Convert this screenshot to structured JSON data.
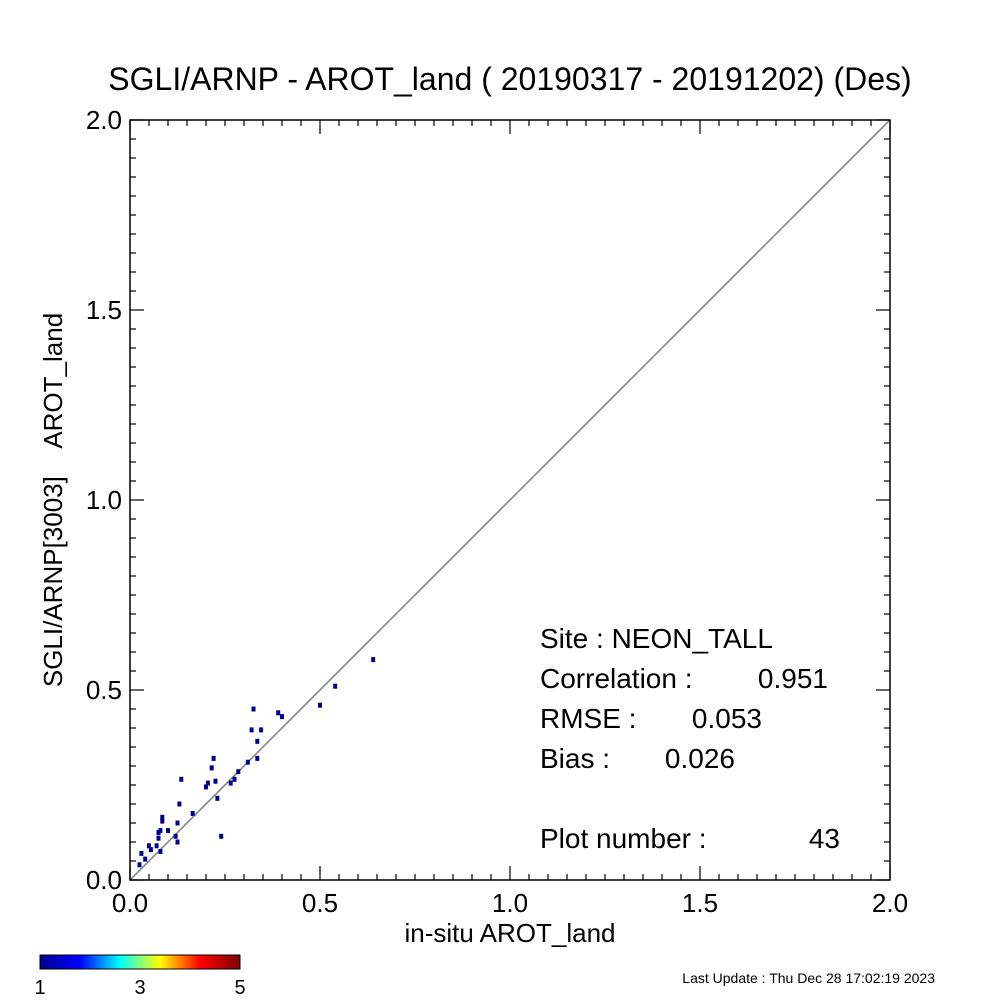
{
  "chart_data": {
    "type": "scatter",
    "title": "SGLI/ARNP - AROT_land ( 20190317 - 20191202) (Des)",
    "xlabel": "in-situ AROT_land",
    "ylabel": "SGLI/ARNP[3003]    AROT_land",
    "xlim": [
      0.0,
      2.0
    ],
    "ylim": [
      0.0,
      2.0
    ],
    "x_ticks": [
      "0.0",
      "0.5",
      "1.0",
      "1.5",
      "2.0"
    ],
    "y_ticks": [
      "0.0",
      "0.5",
      "1.0",
      "1.5",
      "2.0"
    ],
    "reference_line": "1:1",
    "grid": false,
    "point_color": "#00008f",
    "reference_line_color": "#7f7f7f",
    "points": [
      {
        "x": 0.025,
        "y": 0.04
      },
      {
        "x": 0.03,
        "y": 0.07
      },
      {
        "x": 0.04,
        "y": 0.055
      },
      {
        "x": 0.05,
        "y": 0.09
      },
      {
        "x": 0.055,
        "y": 0.08
      },
      {
        "x": 0.07,
        "y": 0.09
      },
      {
        "x": 0.075,
        "y": 0.11
      },
      {
        "x": 0.075,
        "y": 0.125
      },
      {
        "x": 0.08,
        "y": 0.13
      },
      {
        "x": 0.08,
        "y": 0.075
      },
      {
        "x": 0.085,
        "y": 0.155
      },
      {
        "x": 0.085,
        "y": 0.165
      },
      {
        "x": 0.1,
        "y": 0.13
      },
      {
        "x": 0.12,
        "y": 0.115
      },
      {
        "x": 0.125,
        "y": 0.15
      },
      {
        "x": 0.125,
        "y": 0.1
      },
      {
        "x": 0.13,
        "y": 0.2
      },
      {
        "x": 0.135,
        "y": 0.265
      },
      {
        "x": 0.165,
        "y": 0.175
      },
      {
        "x": 0.2,
        "y": 0.245
      },
      {
        "x": 0.205,
        "y": 0.255
      },
      {
        "x": 0.215,
        "y": 0.295
      },
      {
        "x": 0.22,
        "y": 0.32
      },
      {
        "x": 0.225,
        "y": 0.26
      },
      {
        "x": 0.23,
        "y": 0.215
      },
      {
        "x": 0.24,
        "y": 0.115
      },
      {
        "x": 0.265,
        "y": 0.255
      },
      {
        "x": 0.275,
        "y": 0.265
      },
      {
        "x": 0.285,
        "y": 0.285
      },
      {
        "x": 0.31,
        "y": 0.31
      },
      {
        "x": 0.32,
        "y": 0.395
      },
      {
        "x": 0.325,
        "y": 0.45
      },
      {
        "x": 0.335,
        "y": 0.32
      },
      {
        "x": 0.335,
        "y": 0.365
      },
      {
        "x": 0.345,
        "y": 0.395
      },
      {
        "x": 0.39,
        "y": 0.44
      },
      {
        "x": 0.4,
        "y": 0.43
      },
      {
        "x": 0.5,
        "y": 0.46
      },
      {
        "x": 0.54,
        "y": 0.51
      },
      {
        "x": 0.64,
        "y": 0.58
      }
    ],
    "stats": {
      "site_label": "Site : NEON_TALL",
      "correlation_label": "Correlation :",
      "correlation_value": "0.951",
      "rmse_label": "RMSE :",
      "rmse_value": "0.053",
      "bias_label": "Bias :",
      "bias_value": "0.026",
      "plot_number_label": "Plot number :",
      "plot_number_value": "43"
    },
    "colorbar": {
      "ticks": [
        "1",
        "3",
        "5"
      ],
      "min": 1,
      "max": 5,
      "colors": [
        "#00008f",
        "#0000ff",
        "#00ffff",
        "#ffff00",
        "#ff0000",
        "#800000"
      ]
    }
  },
  "footer": {
    "last_update": "Last Update : Thu Dec 28 17:02:19 2023"
  }
}
